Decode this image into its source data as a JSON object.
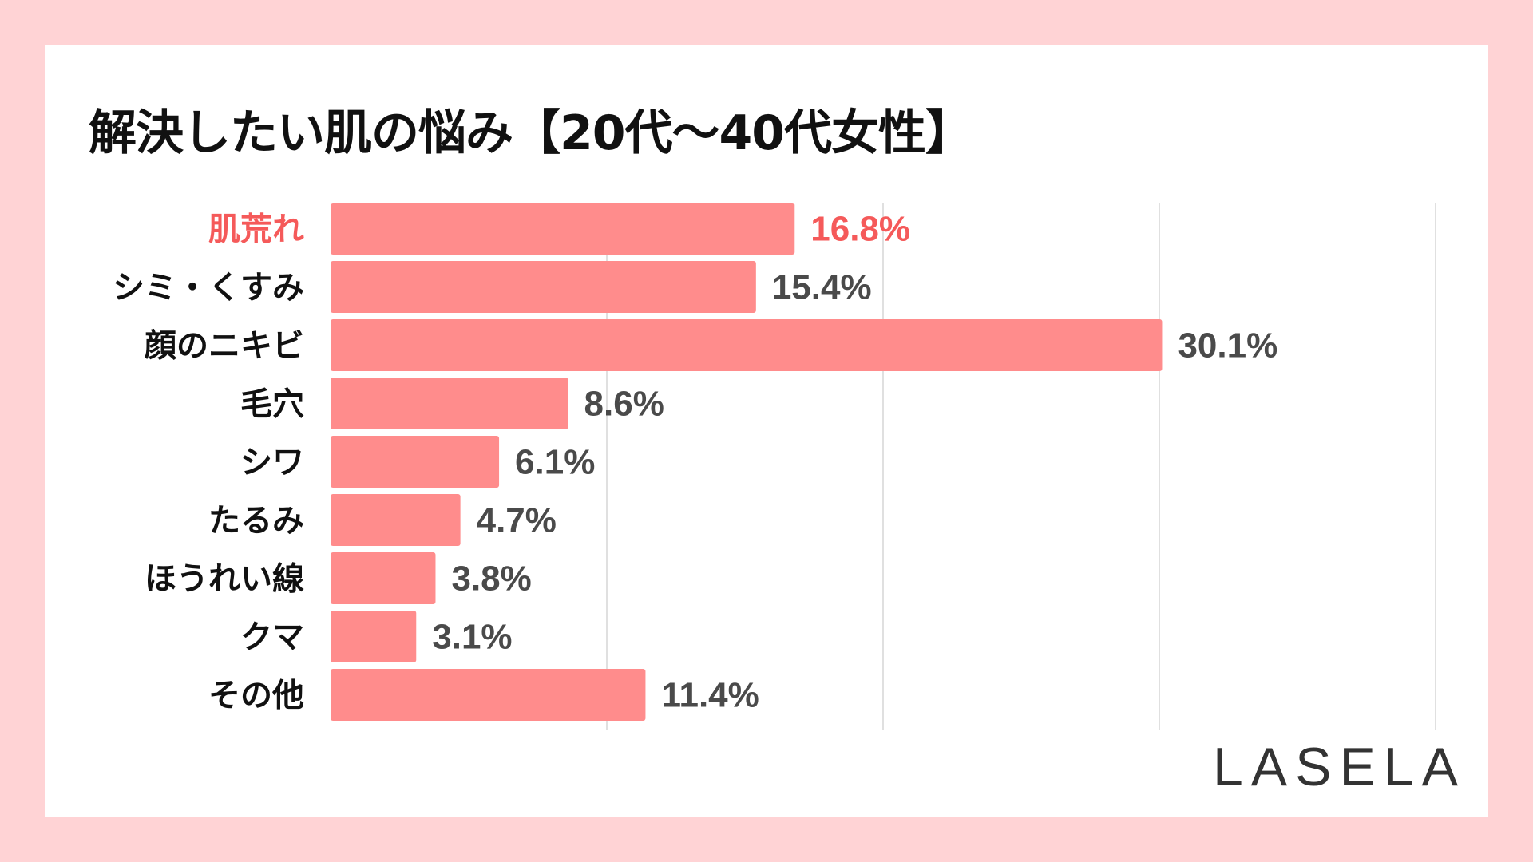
{
  "title": "解決したい肌の悩み【20代〜40代女性】",
  "logo": "LASELA",
  "colors": {
    "background": "#ffd3d5",
    "bar": "#ff8c8c",
    "highlight": "#f55a5a",
    "label": "#111111",
    "value": "#4a4a4a",
    "grid": "#d6d6d6"
  },
  "chart_data": {
    "type": "bar",
    "orientation": "horizontal",
    "categories": [
      "肌荒れ",
      "シミ・くすみ",
      "顔のニキビ",
      "毛穴",
      "シワ",
      "たるみ",
      "ほうれい線",
      "クマ",
      "その他"
    ],
    "values": [
      16.8,
      15.4,
      30.1,
      8.6,
      6.1,
      4.7,
      3.8,
      3.1,
      11.4
    ],
    "value_labels": [
      "16.8%",
      "15.4%",
      "30.1%",
      "8.6%",
      "6.1%",
      "4.7%",
      "3.8%",
      "3.1%",
      "11.4%"
    ],
    "highlight_index": 0,
    "xlim": [
      0,
      40
    ],
    "grid": true,
    "grid_step": 10
  }
}
